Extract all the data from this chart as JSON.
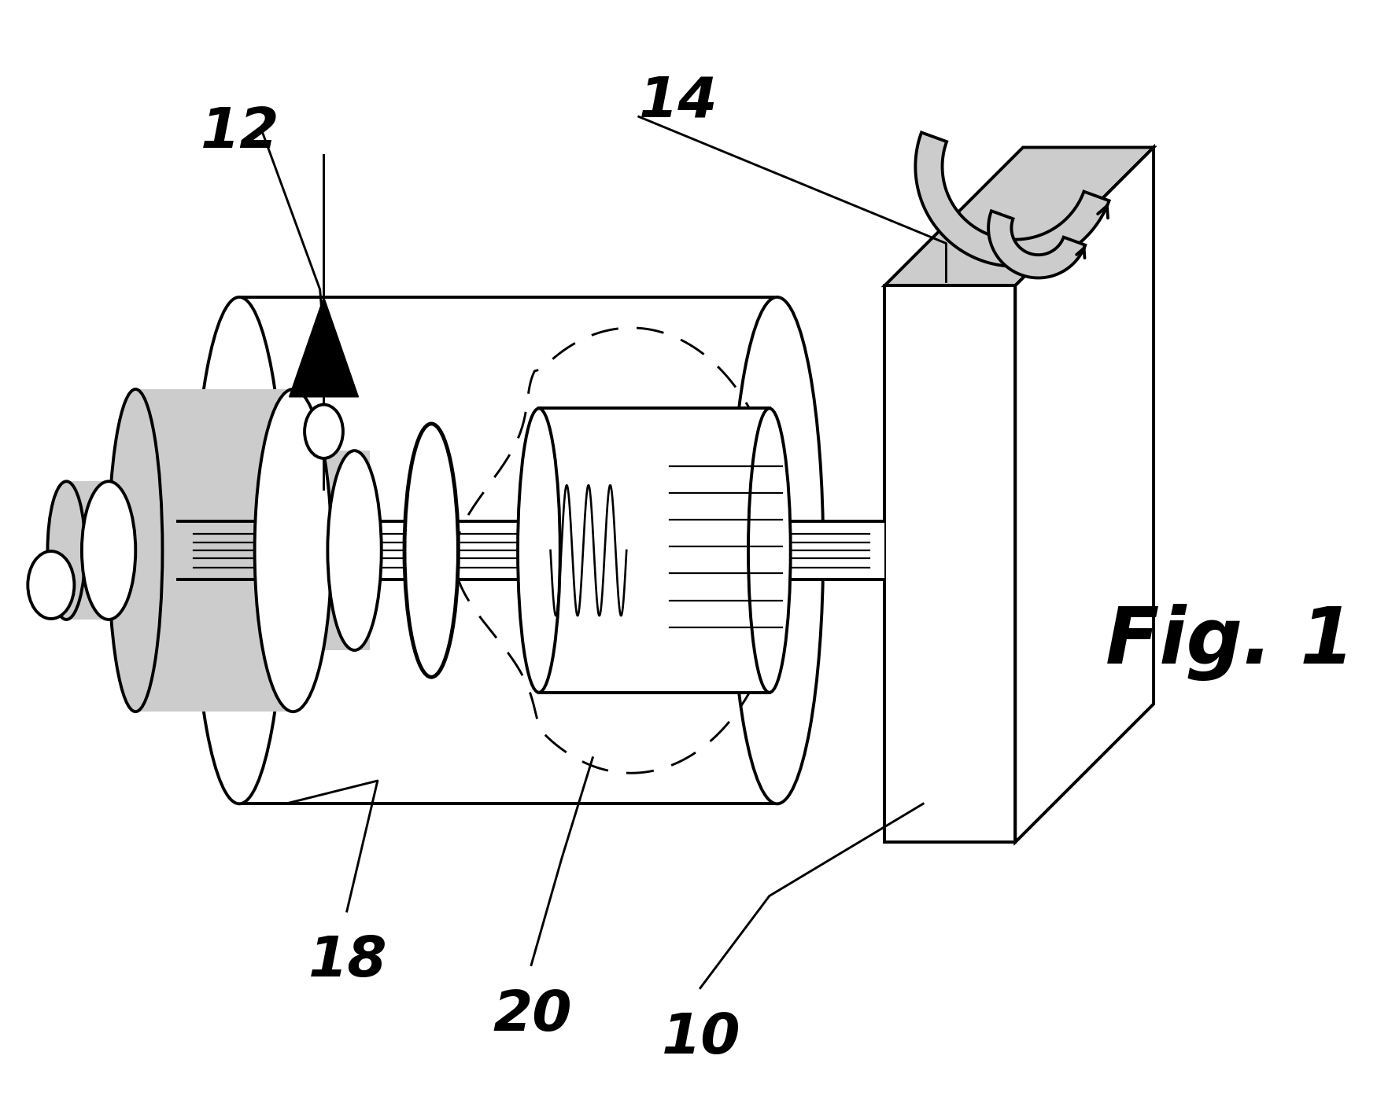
{
  "bg_color": "#ffffff",
  "line_color": "#000000",
  "gray_color": "#aaaaaa",
  "light_gray": "#cccccc",
  "dark_gray": "#888888",
  "fig_label": "Fig. 1",
  "lw": 2.8,
  "lw_thin": 1.6,
  "lw_thick": 3.5
}
